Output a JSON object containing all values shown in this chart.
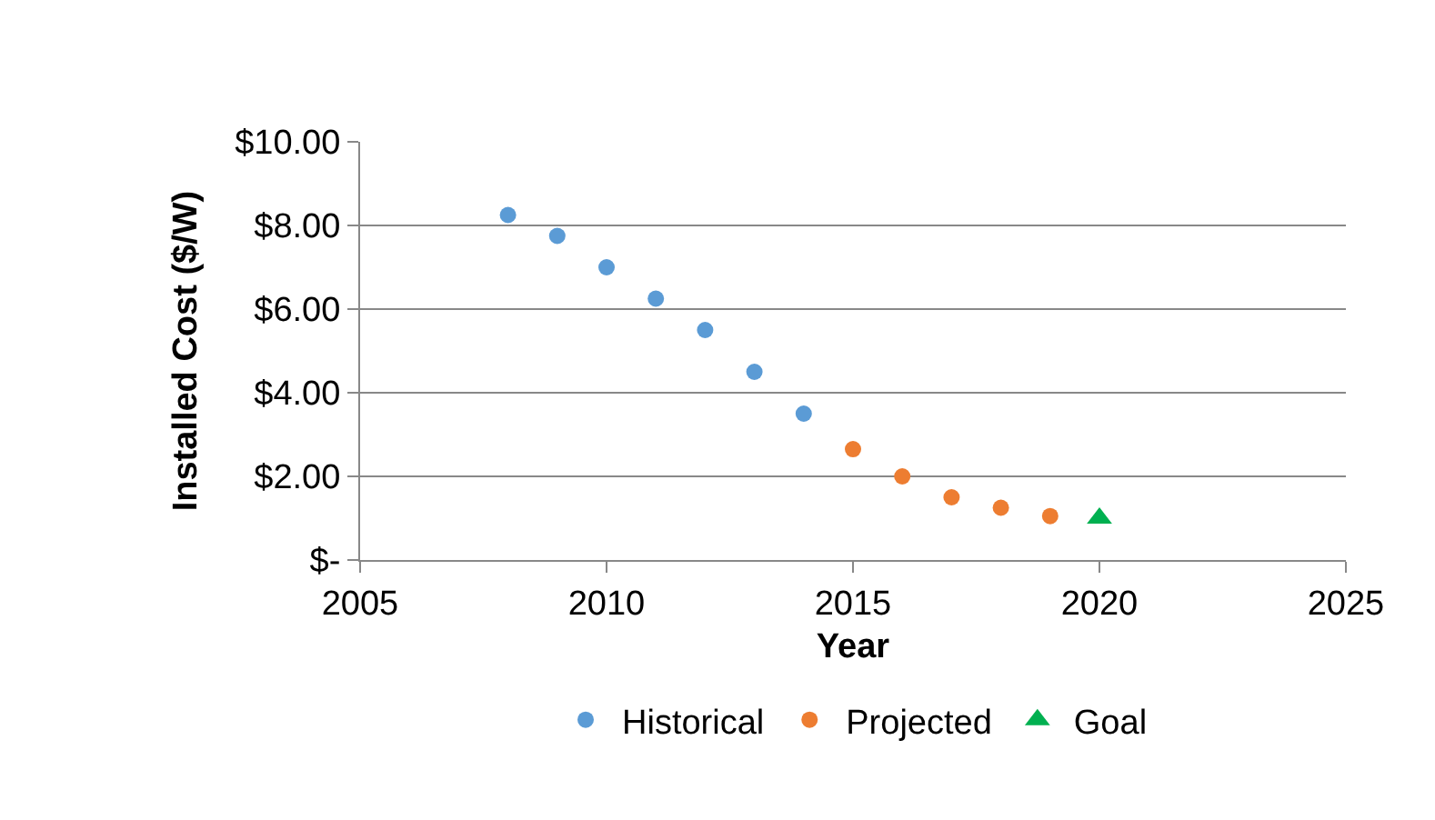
{
  "chart_data": {
    "type": "scatter",
    "xlabel": "Year",
    "ylabel": "Installed Cost ($/W)",
    "xlim": [
      2005,
      2025
    ],
    "xticks": [
      2005,
      2010,
      2015,
      2020,
      2025
    ],
    "ylim": [
      0,
      10
    ],
    "yticks": [
      {
        "value": 0,
        "label": "$-"
      },
      {
        "value": 2,
        "label": "$2.00"
      },
      {
        "value": 4,
        "label": "$4.00"
      },
      {
        "value": 6,
        "label": "$6.00"
      },
      {
        "value": 8,
        "label": "$8.00"
      },
      {
        "value": 10,
        "label": "$10.00"
      }
    ],
    "grid": "y",
    "legend": "bottom",
    "series": [
      {
        "name": "Historical",
        "color": "#5b9bd5",
        "marker": "circle",
        "x": [
          2008,
          2009,
          2010,
          2011,
          2012,
          2013,
          2014
        ],
        "values": [
          8.25,
          7.75,
          7.0,
          6.25,
          5.5,
          4.5,
          3.5
        ]
      },
      {
        "name": "Projected",
        "color": "#ed7d31",
        "marker": "circle",
        "x": [
          2015,
          2016,
          2017,
          2018,
          2019
        ],
        "values": [
          2.65,
          2.0,
          1.5,
          1.25,
          1.05
        ]
      },
      {
        "name": "Goal",
        "color": "#00b050",
        "marker": "triangle",
        "x": [
          2020
        ],
        "values": [
          1.0
        ]
      }
    ]
  }
}
